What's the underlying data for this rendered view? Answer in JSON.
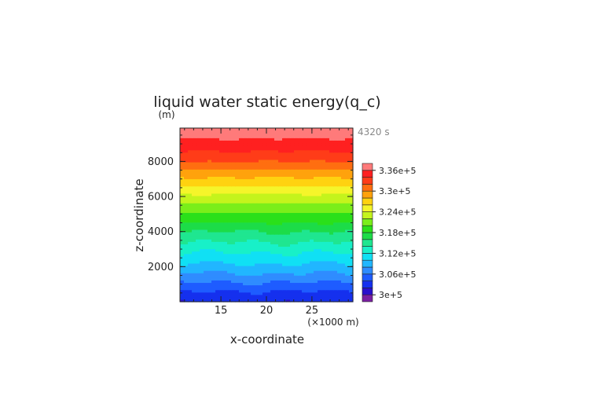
{
  "chart_data": {
    "type": "heatmap",
    "title": "liquid water static energy(q_c)",
    "ylabel_unit": "(m)",
    "ylabel": "z-coordinate",
    "xlabel": "x-coordinate",
    "xunit": "(×1000 m)",
    "time_label": "4320 s",
    "xlim": [
      10.5,
      29.5
    ],
    "ylim": [
      0,
      9900
    ],
    "xticks": [
      "15",
      "20",
      "25"
    ],
    "xtick_values": [
      15,
      20,
      25
    ],
    "yticks": [
      "2000",
      "4000",
      "6000",
      "8000"
    ],
    "ytick_values": [
      2000,
      4000,
      6000,
      8000
    ],
    "colorbar": {
      "min": 298000,
      "max": 338000,
      "levels": 20,
      "labels": [
        "3.36e+5",
        "3.3e+5",
        "3.24e+5",
        "3.18e+5",
        "3.12e+5",
        "3.06e+5",
        "3e+5"
      ],
      "label_values": [
        336000,
        330000,
        324000,
        318000,
        312000,
        306000,
        300000
      ]
    },
    "profile": {
      "z": [
        0,
        500,
        1000,
        1500,
        2000,
        2500,
        3000,
        3500,
        4000,
        4500,
        5000,
        5500,
        6000,
        6500,
        7000,
        7500,
        8000,
        8500,
        9000,
        9500,
        9900
      ],
      "value": [
        302500,
        303500,
        305500,
        307500,
        309300,
        311000,
        312600,
        314300,
        316000,
        317800,
        319600,
        321500,
        323400,
        325500,
        327600,
        329800,
        331900,
        333700,
        335200,
        336500,
        337300
      ]
    }
  }
}
